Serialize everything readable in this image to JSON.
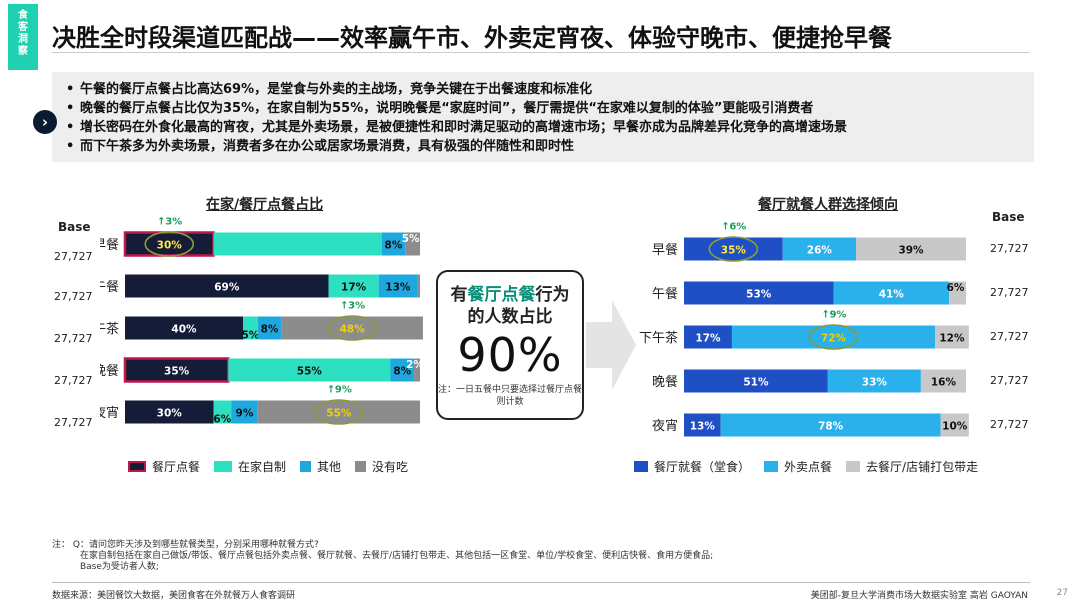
{
  "side_tag": [
    "食",
    "客",
    "洞",
    "察"
  ],
  "title": "决胜全时段渠道匹配战——效率赢午市、外卖定宵夜、体验守晚市、便捷抢早餐",
  "summary": [
    "午餐的餐厅点餐占比高达69%，是堂食与外卖的主战场，竞争关键在于出餐速度和标准化",
    "晚餐的餐厅点餐占比仅为35%，在家自制为55%，说明晚餐是“家庭时间”，餐厅需提供“在家难以复制的体验”更能吸引消费者",
    "增长密码在外食化最高的宵夜，尤其是外卖场景，是被便捷性和即时满足驱动的高增速市场；早餐亦成为品牌差异化竞争的高增速场景",
    "而下午茶多为外卖场景，消费者多在办公或居家场景消费，具有极强的伴随性和即时性"
  ],
  "go_icon": "chevron-right-icon",
  "go_label": "›",
  "base_label": "Base",
  "center": {
    "prefix": "有",
    "accent": "餐厅点餐",
    "suffix": "行为",
    "line2": "的人数占比",
    "value": "90%",
    "footnote": "注：一日五餐中只要选择过餐厅点餐则计数"
  },
  "notes": [
    "注：     Q：请问您昨天涉及到哪些就餐类型，分别采用哪种就餐方式?",
    "在家自制包括在家自己做饭/带饭、餐厅点餐包括外卖点餐、餐厅就餐、去餐厅/店铺打包带走、其他包括一区食堂、单位/学校食堂、便利店快餐、食用方便食品;",
    "Base为受访者人数;"
  ],
  "source": "数据来源：美团餐饮大数据，美团食客在外就餐万人食客调研",
  "credit": "美团部-复旦大学消费市场大数据实验室    高岩 GAOYAN",
  "page_number": "27",
  "colors": {
    "navy": "#141c38",
    "teal": "#2ee0c2",
    "sky": "#1fa8e0",
    "gray": "#8c8c8c",
    "blue": "#1f4fc4",
    "light_blue": "#2ab0ea",
    "light_gray": "#c8c8c8",
    "highlight_border": "#c0174a",
    "green": "#1aa05a",
    "yellow": "#ffe84a"
  },
  "chart_data": [
    {
      "type": "bar",
      "orientation": "horizontal",
      "stacked": true,
      "title": "在家/餐厅点餐占比",
      "categories": [
        "早餐",
        "午餐",
        "下午茶",
        "晚餐",
        "夜宵"
      ],
      "base": [
        "27,727",
        "27,727",
        "27,727",
        "27,727",
        "27,727"
      ],
      "series": [
        {
          "name": "餐厅点餐",
          "values": [
            30,
            69,
            40,
            35,
            30
          ]
        },
        {
          "name": "在家自制",
          "values": [
            57,
            17,
            5,
            55,
            6
          ]
        },
        {
          "name": "其他",
          "values": [
            8,
            13,
            8,
            8,
            9
          ]
        },
        {
          "name": "没有吃",
          "values": [
            5,
            1,
            48,
            2,
            55
          ]
        }
      ],
      "labels": [
        [
          "30%",
          "",
          "8%",
          "5%"
        ],
        [
          "69%",
          "17%",
          "13%",
          ""
        ],
        [
          "40%",
          "5%",
          "8%",
          "48%"
        ],
        [
          "35%",
          "55%",
          "8%",
          "2%"
        ],
        [
          "30%",
          "6%",
          "9%",
          "55%"
        ]
      ],
      "highlighted_categories": [
        "早餐",
        "晚餐"
      ],
      "annotations": [
        {
          "category": "早餐",
          "text": "3%",
          "series": "餐厅点餐"
        },
        {
          "category": "下午茶",
          "text": "3%",
          "series": "没有吃"
        },
        {
          "category": "夜宵",
          "text": "9%",
          "series": "没有吃"
        }
      ],
      "legend_position": "bottom"
    },
    {
      "type": "bar",
      "orientation": "horizontal",
      "stacked": true,
      "title": "餐厅就餐人群选择倾向",
      "categories": [
        "早餐",
        "午餐",
        "下午茶",
        "晚餐",
        "夜宵"
      ],
      "base": [
        "27,727",
        "27,727",
        "27,727",
        "27,727",
        "27,727"
      ],
      "series": [
        {
          "name": "餐厅就餐（堂食）",
          "values": [
            35,
            53,
            17,
            51,
            13
          ]
        },
        {
          "name": "外卖点餐",
          "values": [
            26,
            41,
            72,
            33,
            78
          ]
        },
        {
          "name": "去餐厅/店铺打包带走",
          "values": [
            39,
            6,
            12,
            16,
            10
          ]
        }
      ],
      "labels": [
        [
          "35%",
          "26%",
          "39%"
        ],
        [
          "53%",
          "41%",
          "6%"
        ],
        [
          "17%",
          "72%",
          "12%"
        ],
        [
          "51%",
          "33%",
          "16%"
        ],
        [
          "13%",
          "78%",
          "10%"
        ]
      ],
      "annotations": [
        {
          "category": "早餐",
          "text": "6%",
          "series": "餐厅就餐（堂食）"
        },
        {
          "category": "下午茶",
          "text": "9%",
          "series": "外卖点餐"
        }
      ],
      "legend_position": "bottom"
    }
  ]
}
